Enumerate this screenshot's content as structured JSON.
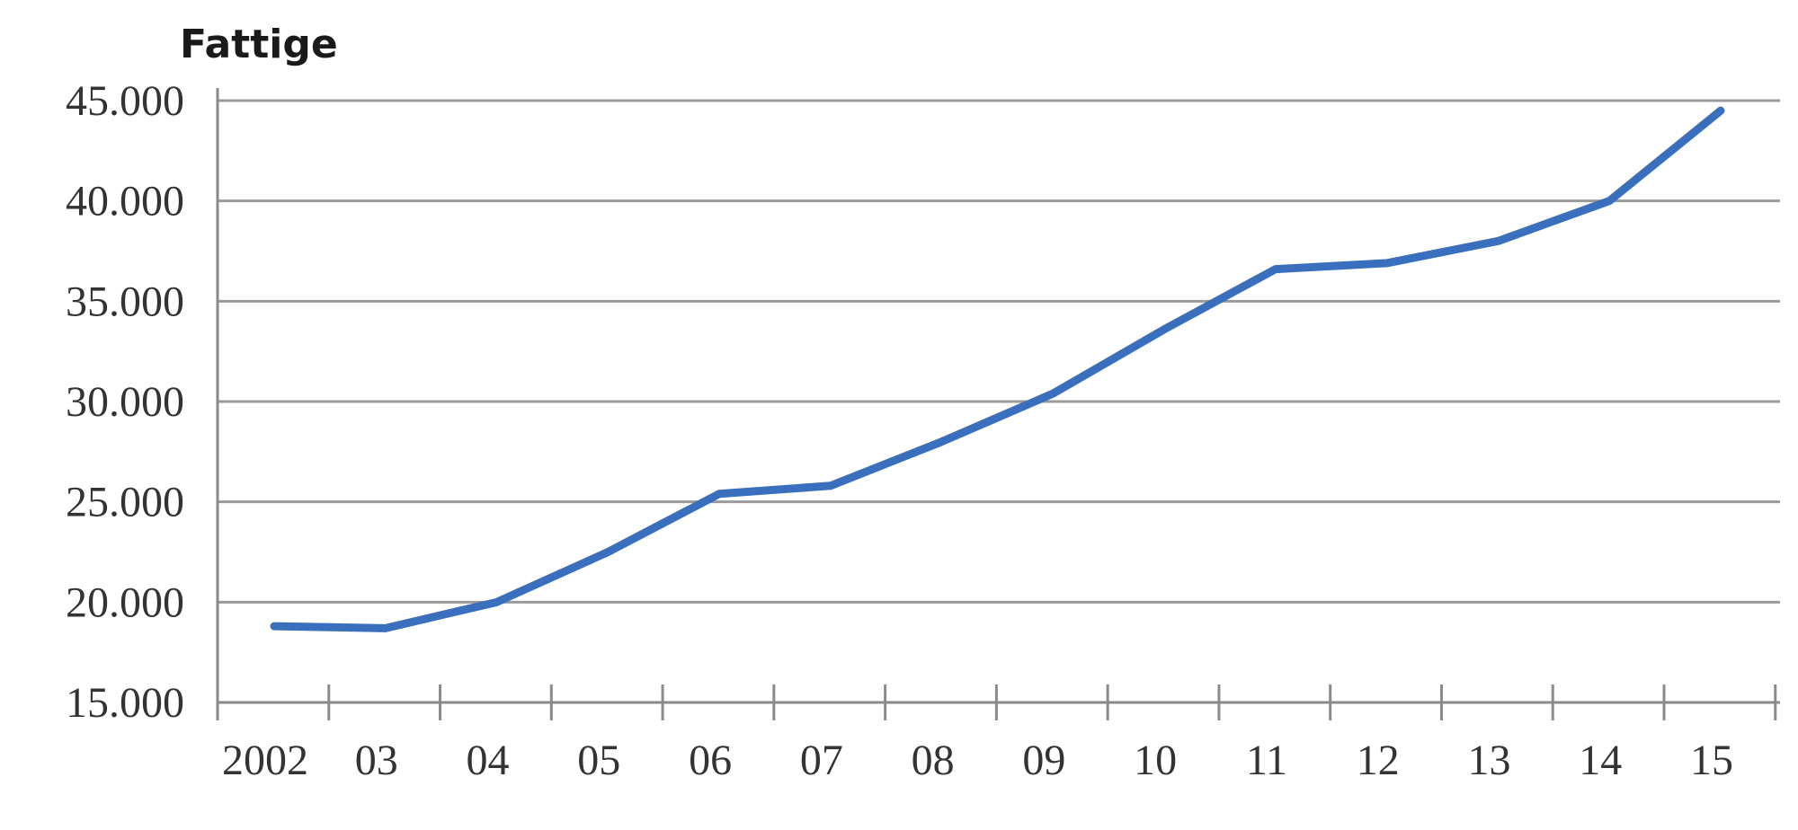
{
  "chart_data": {
    "type": "line",
    "title": "Fattige",
    "xlabel": "",
    "ylabel": "",
    "categories": [
      "2002",
      "03",
      "04",
      "05",
      "06",
      "07",
      "08",
      "09",
      "10",
      "11",
      "12",
      "13",
      "14",
      "15"
    ],
    "y_ticks": [
      "15.000",
      "20.000",
      "25.000",
      "30.000",
      "35.000",
      "40.000",
      "45.000"
    ],
    "ylim": [
      15000,
      45000
    ],
    "grid": true,
    "legend": "none",
    "series": [
      {
        "color": "#3a6fbd",
        "values": [
          18800,
          18700,
          20000,
          22500,
          25400,
          25800,
          28000,
          30400,
          33600,
          36600,
          36900,
          38000,
          40000,
          44500
        ]
      }
    ]
  }
}
